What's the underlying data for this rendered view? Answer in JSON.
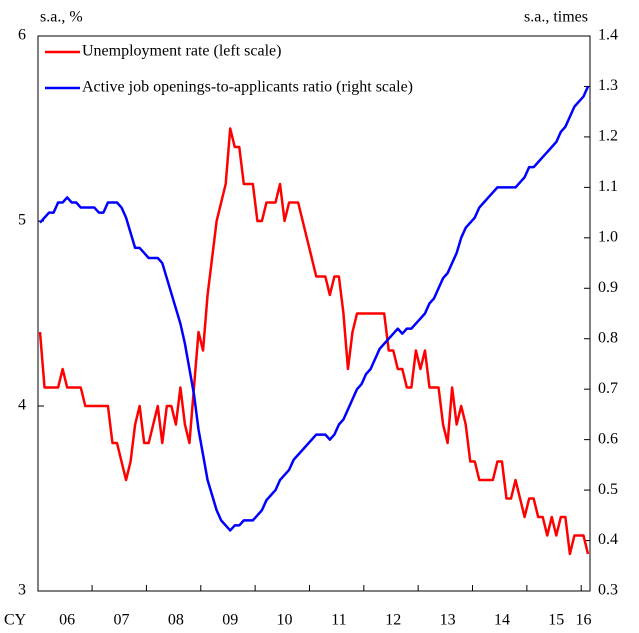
{
  "chart_data": {
    "type": "line",
    "left_unit_label": "s.a., %",
    "right_unit_label": "s.a., times",
    "xlabel": "CY",
    "categories": [
      null,
      null,
      null,
      null,
      null,
      null,
      "06",
      null,
      null,
      null,
      null,
      null,
      null,
      null,
      null,
      null,
      null,
      null,
      "07",
      null,
      null,
      null,
      null,
      null,
      null,
      null,
      null,
      null,
      null,
      null,
      "08",
      null,
      null,
      null,
      null,
      null,
      null,
      null,
      null,
      null,
      null,
      null,
      "09",
      null,
      null,
      null,
      null,
      null,
      null,
      null,
      null,
      null,
      null,
      null,
      "10",
      null,
      null,
      null,
      null,
      null,
      null,
      null,
      null,
      null,
      null,
      null,
      "11",
      null,
      null,
      null,
      null,
      null,
      null,
      null,
      null,
      null,
      null,
      null,
      "12",
      null,
      null,
      null,
      null,
      null,
      null,
      null,
      null,
      null,
      null,
      null,
      "13",
      null,
      null,
      null,
      null,
      null,
      null,
      null,
      null,
      null,
      null,
      null,
      "14",
      null,
      null,
      null,
      null,
      null,
      null,
      null,
      null,
      null,
      null,
      null,
      "15",
      null,
      null,
      null,
      null,
      null,
      "16",
      null
    ],
    "series": [
      {
        "name": "Unemployment rate (left scale)",
        "color": "#ff0000",
        "axis": "y",
        "values": [
          4.4,
          4.1,
          4.1,
          4.1,
          4.1,
          4.2,
          4.1,
          4.1,
          4.1,
          4.1,
          4.0,
          4.0,
          4.0,
          4.0,
          4.0,
          4.0,
          3.8,
          3.8,
          3.7,
          3.6,
          3.7,
          3.9,
          4.0,
          3.8,
          3.8,
          3.9,
          4.0,
          3.8,
          4.0,
          4.0,
          3.9,
          4.1,
          3.9,
          3.8,
          4.1,
          4.4,
          4.3,
          4.6,
          4.8,
          5.0,
          5.1,
          5.2,
          5.5,
          5.4,
          5.4,
          5.2,
          5.2,
          5.2,
          5.0,
          5.0,
          5.1,
          5.1,
          5.1,
          5.2,
          5.0,
          5.1,
          5.1,
          5.1,
          5.0,
          4.9,
          4.8,
          4.7,
          4.7,
          4.7,
          4.6,
          4.7,
          4.7,
          4.5,
          4.2,
          4.4,
          4.5,
          4.5,
          4.5,
          4.5,
          4.5,
          4.5,
          4.5,
          4.3,
          4.3,
          4.2,
          4.2,
          4.1,
          4.1,
          4.3,
          4.2,
          4.3,
          4.1,
          4.1,
          4.1,
          3.9,
          3.8,
          4.1,
          3.9,
          4.0,
          3.9,
          3.7,
          3.7,
          3.6,
          3.6,
          3.6,
          3.6,
          3.7,
          3.7,
          3.5,
          3.5,
          3.6,
          3.5,
          3.4,
          3.5,
          3.5,
          3.4,
          3.4,
          3.3,
          3.4,
          3.3,
          3.4,
          3.4,
          3.2,
          3.3,
          3.3,
          3.3,
          3.2
        ]
      },
      {
        "name": "Active job openings-to-applicants ratio (right scale)",
        "color": "#0000ff",
        "axis": "y2",
        "values": [
          1.03,
          1.04,
          1.05,
          1.05,
          1.07,
          1.07,
          1.08,
          1.07,
          1.07,
          1.06,
          1.06,
          1.06,
          1.06,
          1.05,
          1.05,
          1.07,
          1.07,
          1.07,
          1.06,
          1.04,
          1.01,
          0.98,
          0.98,
          0.97,
          0.96,
          0.96,
          0.96,
          0.95,
          0.92,
          0.89,
          0.86,
          0.83,
          0.79,
          0.74,
          0.69,
          0.62,
          0.57,
          0.52,
          0.49,
          0.46,
          0.44,
          0.43,
          0.42,
          0.43,
          0.43,
          0.44,
          0.44,
          0.44,
          0.45,
          0.46,
          0.48,
          0.49,
          0.5,
          0.52,
          0.53,
          0.54,
          0.56,
          0.57,
          0.58,
          0.59,
          0.6,
          0.61,
          0.61,
          0.61,
          0.6,
          0.61,
          0.63,
          0.64,
          0.66,
          0.68,
          0.7,
          0.71,
          0.73,
          0.74,
          0.76,
          0.78,
          0.79,
          0.8,
          0.81,
          0.82,
          0.81,
          0.82,
          0.82,
          0.83,
          0.84,
          0.85,
          0.87,
          0.88,
          0.9,
          0.92,
          0.93,
          0.95,
          0.97,
          1.0,
          1.02,
          1.03,
          1.04,
          1.06,
          1.07,
          1.08,
          1.09,
          1.1,
          1.1,
          1.1,
          1.1,
          1.1,
          1.11,
          1.12,
          1.14,
          1.14,
          1.15,
          1.16,
          1.17,
          1.18,
          1.19,
          1.21,
          1.22,
          1.24,
          1.26,
          1.27,
          1.28,
          1.3
        ]
      }
    ],
    "ylim": [
      3,
      6
    ],
    "yticks": [
      3,
      4,
      5,
      6
    ],
    "y2lim": [
      0.3,
      1.4
    ],
    "y2ticks": [
      0.3,
      0.4,
      0.5,
      0.6,
      0.7,
      0.8,
      0.9,
      {
        "value": 1,
        "label": "1.0"
      },
      1.1,
      1.2,
      1.3,
      1.4
    ],
    "grid": false,
    "legend": "upper left"
  }
}
